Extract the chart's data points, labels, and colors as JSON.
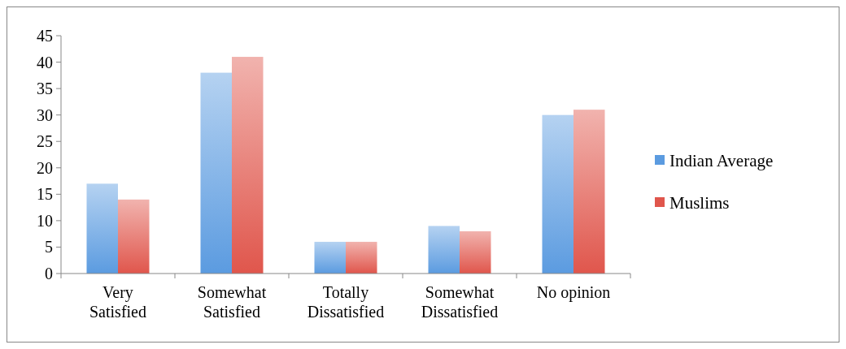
{
  "chart_data": {
    "type": "bar",
    "categories": [
      "Very Satisfied",
      "Somewhat Satisfied",
      "Totally Dissatisfied",
      "Somewhat Dissatisfied",
      "No opinion"
    ],
    "series": [
      {
        "name": "Indian Average",
        "color": "#5b9be0",
        "values": [
          17,
          38,
          6,
          9,
          30
        ]
      },
      {
        "name": "Muslims",
        "color": "#e0564c",
        "values": [
          14,
          41,
          6,
          8,
          31
        ]
      }
    ],
    "ylim": [
      0,
      45
    ],
    "yticks": [
      0,
      5,
      10,
      15,
      20,
      25,
      30,
      35,
      40,
      45
    ],
    "grid": false,
    "legend": "right"
  }
}
